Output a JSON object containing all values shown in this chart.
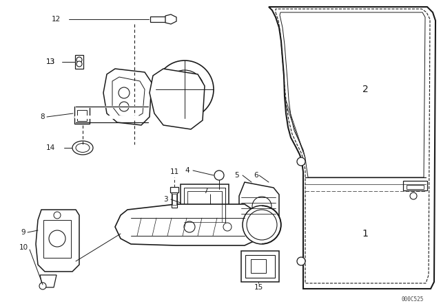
{
  "bg_color": "#ffffff",
  "line_color": "#1a1a1a",
  "fig_width": 6.4,
  "fig_height": 4.48,
  "dpi": 100,
  "watermark": "000C525"
}
